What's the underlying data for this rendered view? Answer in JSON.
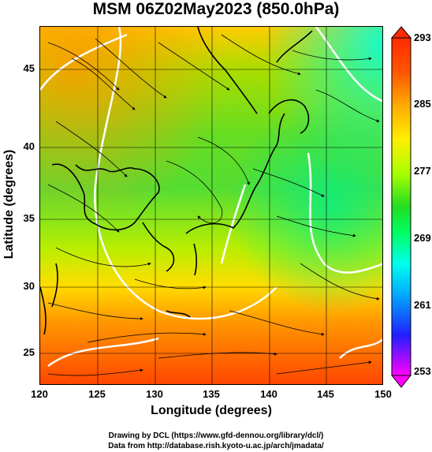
{
  "title": "MSM 06Z02May2023 (850.0hPa)",
  "axes": {
    "xlabel": "Longitude (degrees)",
    "ylabel": "Latitude  (degrees)",
    "xticks": [
      "120",
      "125",
      "130",
      "135",
      "140",
      "145",
      "150"
    ],
    "yticks": [
      "45",
      "40",
      "35",
      "30",
      "25"
    ],
    "xrange": [
      120,
      150
    ],
    "yrange": [
      22.4,
      47.6
    ]
  },
  "colorbar": {
    "ticks": [
      "293",
      "285",
      "277",
      "269",
      "261",
      "253"
    ],
    "range": [
      253,
      293
    ],
    "colors": [
      "#ff00ff",
      "#2020ff",
      "#00aaff",
      "#00ffee",
      "#00ff66",
      "#22dd22",
      "#aaff00",
      "#ffee00",
      "#ffaa00",
      "#ff5500",
      "#ff2a00"
    ]
  },
  "credits": {
    "line1": "Drawing by DCL (https://www.gfd-dennou.org/library/dcl/)",
    "line2": "Data from http://database.rish.kyoto-u.ac.jp/arch/jmadata/"
  }
}
